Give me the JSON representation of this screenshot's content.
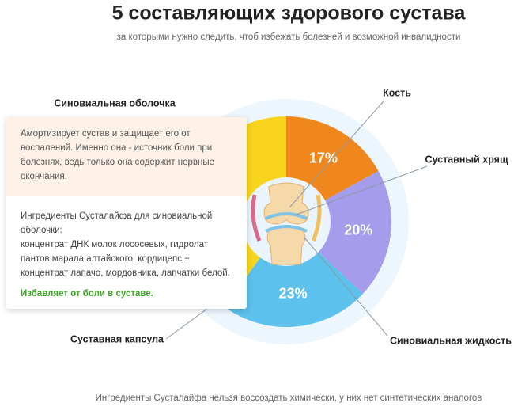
{
  "chart_data": {
    "type": "pie",
    "donut": true,
    "title": "5 составляющих здорового сустава",
    "subtitle": "за которыми нужно следить, чтоб избежать болезней и возможной инвалидности",
    "categories": [
      "Кость",
      "Суставный хрящ",
      "Синовиальная жидкость",
      "Суставная капсула",
      "Синовиальная оболочка"
    ],
    "values": [
      17,
      20,
      23,
      20,
      20
    ],
    "value_labels": [
      "17%",
      "20%",
      "23%",
      null,
      null
    ],
    "colors": [
      "#f0871c",
      "#a59cec",
      "#5cc1ec",
      "#f8d41c",
      "#f8d41c"
    ]
  },
  "card": {
    "description": "Амортизирует сустав и защищает его от воспалений. Именно она - источник боли при болезнях, ведь только она содержит нервные окончания.",
    "ingredients_title": "Ингредиенты Сусталайфа для синовиальной оболочки:",
    "ingredients": "концентрат ДНК молок лососевых, гидролат пантов марала алтайского, кордицепс + концентрат лапачо, мордовника, лапчатки белой.",
    "benefit": "Избавляет от боли в суставе."
  },
  "footer": "Ингредиенты Сусталайфа нельзя воссоздать химически, у них нет синтетических аналогов"
}
